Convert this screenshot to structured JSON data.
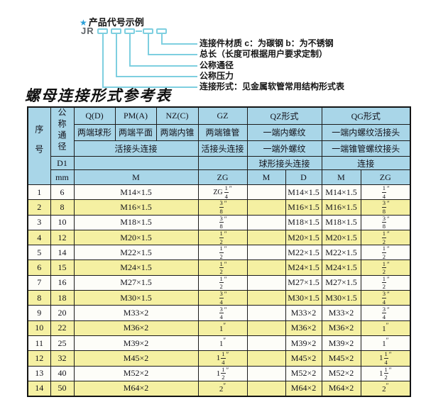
{
  "diagram": {
    "star": "★",
    "heading": "产品代号示例",
    "code_prefix": "JR",
    "labels": [
      "连接件材质  c：为碳钢  b：为不锈钢",
      "总长（长度可根据用户要求定制）",
      "公称通径",
      "公称压力",
      "连接形式：见金属软管常用结构形式表"
    ]
  },
  "table": {
    "title": "螺母连接形式参考表",
    "header": {
      "seq": "序号",
      "nominal_diameter": "公称通径",
      "d1": "D1",
      "mm": "mm",
      "qd": "Q(D)",
      "pma": "PM(A)",
      "nzc": "NZ(C)",
      "gz": "GZ",
      "qz": "QZ形式",
      "qg": "QG形式",
      "qd_desc": "两端球形",
      "pma_desc": "两端平面",
      "nzc_desc": "两端内锥",
      "gz_desc": "两端锥管",
      "qz_desc1": "一端内螺纹",
      "qg_desc1": "一端内螺纹活接头",
      "union_conn": "活接头连接",
      "gz_conn": "活接头连接",
      "qz_desc2": "一端外螺纹",
      "qg_desc2": "一端锥管螺纹接头",
      "qz_desc3": "球形接头连接",
      "qg_desc3": "连接",
      "m": "M",
      "zg": "ZG",
      "qz_m": "M",
      "qz_d": "D",
      "qg_m": "M",
      "qg_zg": "ZG"
    },
    "rows": [
      {
        "seq": "1",
        "dn": "6",
        "m": "M14×1.5",
        "gz": {
          "prefix": "ZG",
          "whole": "",
          "num": "1",
          "den": "4",
          "unit": "″"
        },
        "qz_m": "",
        "qz_d": "M14×1.5",
        "qg_m": "M14×1.5",
        "qg": {
          "prefix": "",
          "whole": "",
          "num": "1",
          "den": "4",
          "unit": "″"
        }
      },
      {
        "seq": "2",
        "dn": "8",
        "m": "M16×1.5",
        "gz": {
          "prefix": "",
          "whole": "",
          "num": "3",
          "den": "8",
          "unit": "″"
        },
        "qz_m": "",
        "qz_d": "M16×1.5",
        "qg_m": "M16×1.5",
        "qg": {
          "prefix": "",
          "whole": "",
          "num": "3",
          "den": "8",
          "unit": "″"
        }
      },
      {
        "seq": "3",
        "dn": "10",
        "m": "M18×1.5",
        "gz": {
          "prefix": "",
          "whole": "",
          "num": "3",
          "den": "8",
          "unit": "″"
        },
        "qz_m": "",
        "qz_d": "M18×1.5",
        "qg_m": "M18×1.5",
        "qg": {
          "prefix": "",
          "whole": "",
          "num": "3",
          "den": "8",
          "unit": "″"
        }
      },
      {
        "seq": "4",
        "dn": "12",
        "m": "M20×1.5",
        "gz": {
          "prefix": "",
          "whole": "",
          "num": "1",
          "den": "2",
          "unit": "″"
        },
        "qz_m": "",
        "qz_d": "M20×1.5",
        "qg_m": "M20×1.5",
        "qg": {
          "prefix": "",
          "whole": "",
          "num": "1",
          "den": "2",
          "unit": "″"
        }
      },
      {
        "seq": "5",
        "dn": "14",
        "m": "M22×1.5",
        "gz": {
          "prefix": "",
          "whole": "",
          "num": "1",
          "den": "2",
          "unit": "″"
        },
        "qz_m": "",
        "qz_d": "M22×1.5",
        "qg_m": "M22×1.5",
        "qg": {
          "prefix": "",
          "whole": "",
          "num": "1",
          "den": "2",
          "unit": "″"
        }
      },
      {
        "seq": "6",
        "dn": "15",
        "m": "M24×1.5",
        "gz": {
          "prefix": "",
          "whole": "",
          "num": "1",
          "den": "2",
          "unit": "″"
        },
        "qz_m": "",
        "qz_d": "M24×1.5",
        "qg_m": "M24×1.5",
        "qg": {
          "prefix": "",
          "whole": "",
          "num": "1",
          "den": "2",
          "unit": "″"
        }
      },
      {
        "seq": "7",
        "dn": "16",
        "m": "M27×1.5",
        "gz": {
          "prefix": "",
          "whole": "",
          "num": "1",
          "den": "2",
          "unit": "″"
        },
        "qz_m": "",
        "qz_d": "M27×1.5",
        "qg_m": "M27×1.5",
        "qg": {
          "prefix": "",
          "whole": "",
          "num": "1",
          "den": "2",
          "unit": "″"
        }
      },
      {
        "seq": "8",
        "dn": "18",
        "m": "M30×1.5",
        "gz": {
          "prefix": "",
          "whole": "",
          "num": "3",
          "den": "4",
          "unit": "″"
        },
        "qz_m": "",
        "qz_d": "M30×1.5",
        "qg_m": "M30×1.5",
        "qg": {
          "prefix": "",
          "whole": "",
          "num": "3",
          "den": "4",
          "unit": "″"
        }
      },
      {
        "seq": "9",
        "dn": "20",
        "m": "M33×2",
        "gz": {
          "prefix": "",
          "whole": "",
          "num": "3",
          "den": "4",
          "unit": "″"
        },
        "qz_m": "",
        "qz_d": "M33×2",
        "qg_m": "M33×2",
        "qg": {
          "prefix": "",
          "whole": "",
          "num": "3",
          "den": "4",
          "unit": "″"
        }
      },
      {
        "seq": "10",
        "dn": "22",
        "m": "M36×2",
        "gz": {
          "prefix": "",
          "whole": "1",
          "num": "",
          "den": "",
          "unit": "″"
        },
        "qz_m": "",
        "qz_d": "M36×2",
        "qg_m": "M36×2",
        "qg": {
          "prefix": "",
          "whole": "1",
          "num": "",
          "den": "",
          "unit": "″"
        }
      },
      {
        "seq": "11",
        "dn": "25",
        "m": "M39×2",
        "gz": {
          "prefix": "",
          "whole": "1",
          "num": "",
          "den": "",
          "unit": "″"
        },
        "qz_m": "",
        "qz_d": "M39×2",
        "qg_m": "M39×2",
        "qg": {
          "prefix": "",
          "whole": "1",
          "num": "",
          "den": "",
          "unit": "″"
        }
      },
      {
        "seq": "12",
        "dn": "32",
        "m": "M45×2",
        "gz": {
          "prefix": "",
          "whole": "1",
          "num": "1",
          "den": "4",
          "unit": "″"
        },
        "qz_m": "",
        "qz_d": "M45×2",
        "qg_m": "M45×2",
        "qg": {
          "prefix": "",
          "whole": "1",
          "num": "1",
          "den": "4",
          "unit": "″"
        }
      },
      {
        "seq": "13",
        "dn": "40",
        "m": "M52×2",
        "gz": {
          "prefix": "",
          "whole": "1",
          "num": "1",
          "den": "2",
          "unit": "″"
        },
        "qz_m": "",
        "qz_d": "M52×2",
        "qg_m": "M52×2",
        "qg": {
          "prefix": "",
          "whole": "1",
          "num": "1",
          "den": "2",
          "unit": "″"
        }
      },
      {
        "seq": "14",
        "dn": "50",
        "m": "M64×2",
        "gz": {
          "prefix": "",
          "whole": "2",
          "num": "",
          "den": "",
          "unit": "″"
        },
        "qz_m": "",
        "qz_d": "M64×2",
        "qg_m": "M64×2",
        "qg": {
          "prefix": "",
          "whole": "2",
          "num": "",
          "den": "",
          "unit": "″"
        }
      }
    ]
  },
  "colors": {
    "header_blue": "#a9d6e8",
    "row_yellow": "#f5f0a2",
    "row_white": "#fdfdf8",
    "accent_cyan": "#7ecfe0",
    "star_blue": "#2b9fd8",
    "border_black": "#1c1c1c"
  }
}
